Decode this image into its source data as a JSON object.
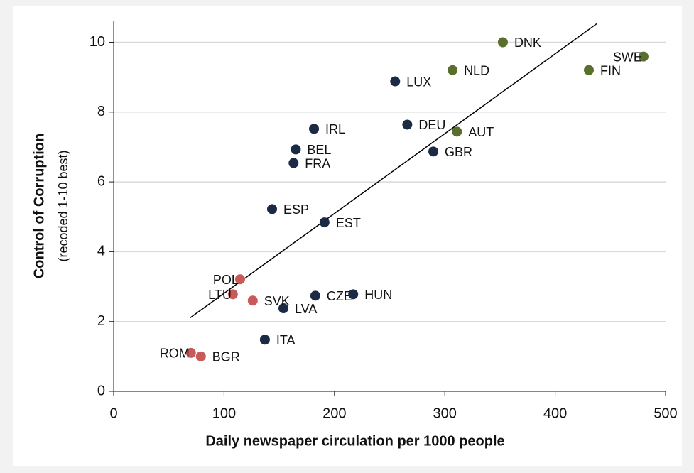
{
  "chart_data": {
    "type": "scatter",
    "x_label": "Daily newspaper circulation per 1000 people",
    "y_label": "Control of Corruption",
    "y_sublabel": "(recoded 1-10 best)",
    "xlim": [
      0,
      500
    ],
    "xticks": [
      0,
      100,
      200,
      300,
      400,
      500
    ],
    "ylim": [
      0,
      10.6
    ],
    "yticks": [
      0,
      2,
      4,
      6,
      8,
      10
    ],
    "grid": true,
    "series": [
      {
        "color": "#1b2a45",
        "labels": [
          "LUX",
          "DEU",
          "IRL",
          "BEL",
          "FRA",
          "GBR",
          "ESP",
          "EST",
          "CZE",
          "HUN",
          "LVA",
          "ITA"
        ],
        "x": [
          255,
          266,
          181.5,
          165,
          163,
          289.6,
          143.5,
          191,
          182.7,
          217,
          153.8,
          137
        ],
        "values": [
          8.88,
          7.64,
          7.52,
          6.93,
          6.54,
          6.87,
          5.22,
          4.84,
          2.74,
          2.78,
          2.38,
          1.48
        ]
      },
      {
        "color": "#58702b",
        "labels": [
          "DNK",
          "SWE",
          "FIN",
          "NLD",
          "AUT"
        ],
        "x": [
          352.6,
          480,
          430.5,
          307,
          311
        ],
        "values": [
          10.0,
          9.59,
          9.2,
          9.2,
          7.44
        ]
      },
      {
        "color": "#c85a5a",
        "labels": [
          "POL",
          "LTU",
          "SVK",
          "ROM",
          "BGR"
        ],
        "x": [
          114.5,
          108,
          126,
          70,
          79
        ],
        "values": [
          3.21,
          2.78,
          2.6,
          1.1,
          1.0
        ]
      }
    ],
    "trendline": {
      "x": [
        69.5,
        437.6
      ],
      "y": [
        2.11,
        10.53
      ],
      "color": "#000000"
    }
  }
}
